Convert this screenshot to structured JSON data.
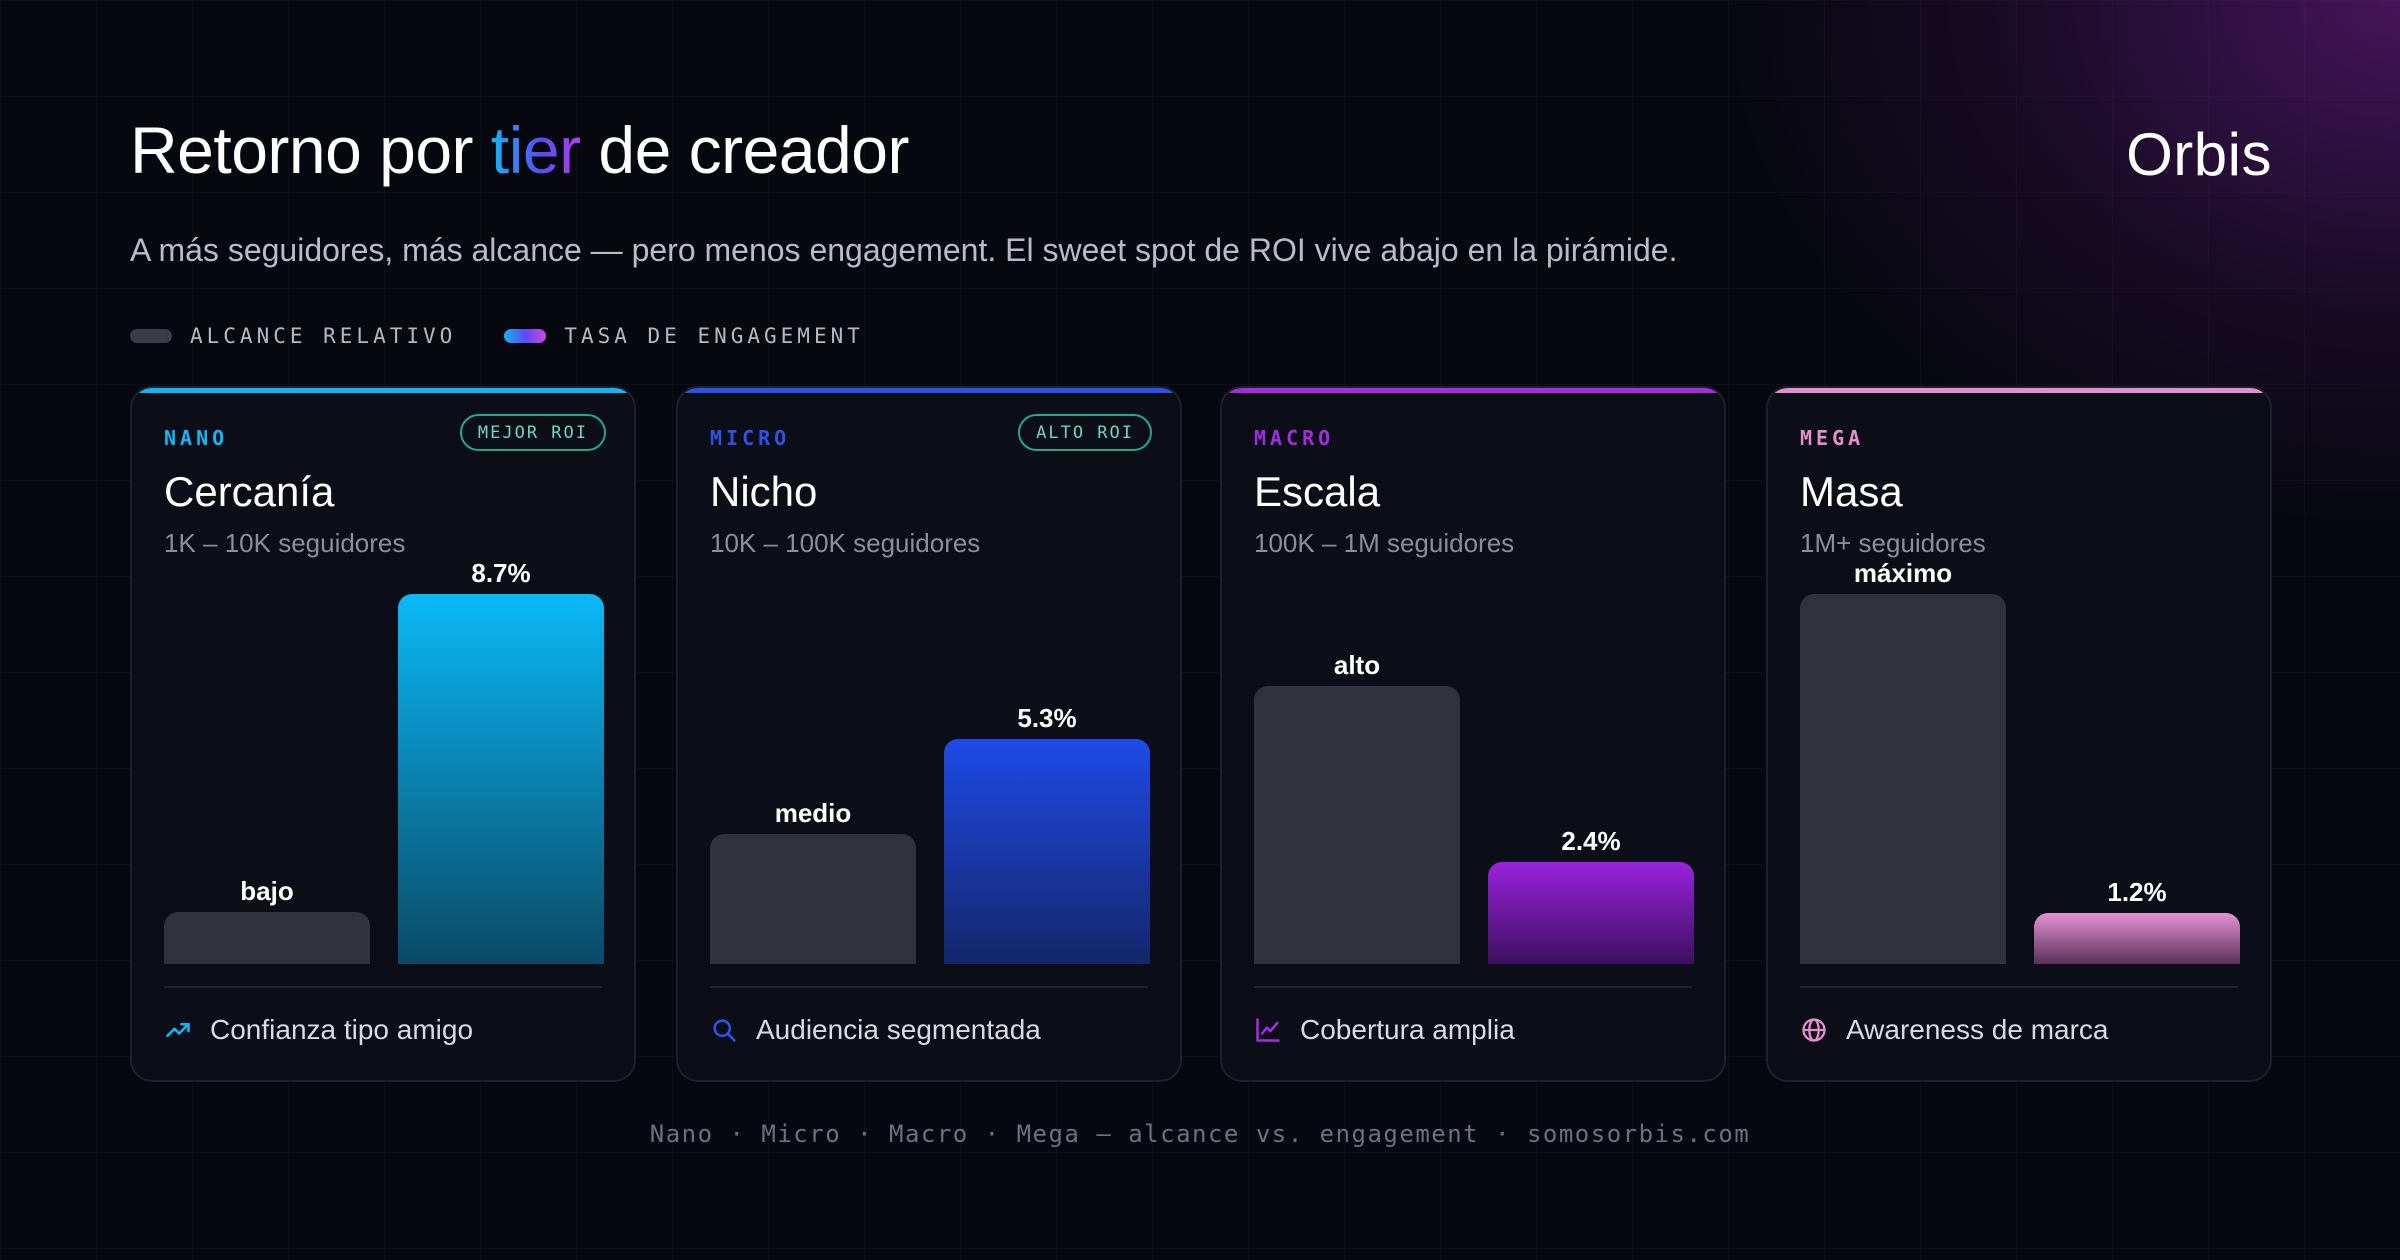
{
  "header": {
    "title_before": "Retorno por ",
    "title_accent": "tier",
    "title_after": " de creador",
    "brand": "Orbis",
    "subtitle": "A más seguidores, más alcance — pero menos engagement. El sweet spot de ROI vive abajo en la pirámide."
  },
  "legend": {
    "reach_label": "ALCANCE RELATIVO",
    "engagement_label": "TASA DE ENGAGEMENT"
  },
  "chart_data": {
    "type": "bar",
    "categories": [
      "NANO",
      "MICRO",
      "MACRO",
      "MEGA"
    ],
    "series": [
      {
        "name": "ALCANCE RELATIVO",
        "labels": [
          "bajo",
          "medio",
          "alto",
          "máximo"
        ],
        "levels": [
          0.14,
          0.35,
          0.75,
          1.0
        ]
      },
      {
        "name": "TASA DE ENGAGEMENT",
        "values": [
          8.7,
          5.3,
          2.4,
          1.2
        ],
        "unit": "%"
      }
    ],
    "ylim": [
      0,
      8.7
    ]
  },
  "cards": [
    {
      "tier": "NANO",
      "name": "Cercanía",
      "range": "1K – 10K seguidores",
      "badge": "MEJOR ROI",
      "reach_label": "bajo",
      "eng_label": "8.7%",
      "footer": "Confianza tipo amigo",
      "icon": "trending-up-icon",
      "accent": "#12b6f5",
      "eng_top": "#0ab9f7",
      "eng_bottom": "#0a4a66"
    },
    {
      "tier": "MICRO",
      "name": "Nicho",
      "range": "10K – 100K seguidores",
      "badge": "ALTO ROI",
      "reach_label": "medio",
      "eng_label": "5.3%",
      "footer": "Audiencia segmentada",
      "icon": "search-icon",
      "accent": "#2e52e8",
      "eng_top": "#1e4ae8",
      "eng_bottom": "#14266a"
    },
    {
      "tier": "MACRO",
      "name": "Escala",
      "range": "100K – 1M seguidores",
      "badge": "",
      "reach_label": "alto",
      "eng_label": "2.4%",
      "footer": "Cobertura amplia",
      "icon": "line-chart-icon",
      "accent": "#a32ce0",
      "eng_top": "#9a22dd",
      "eng_bottom": "#3c1060"
    },
    {
      "tier": "MEGA",
      "name": "Masa",
      "range": "1M+ seguidores",
      "badge": "",
      "reach_label": "máximo",
      "eng_label": "1.2%",
      "footer": "Awareness de marca",
      "icon": "globe-icon",
      "accent": "#e48fd0",
      "eng_top": "#e592d3",
      "eng_bottom": "#5a3058"
    }
  ],
  "footer": {
    "caption": "Nano · Micro · Macro · Mega — alcance vs. engagement · somosorbis.com"
  }
}
